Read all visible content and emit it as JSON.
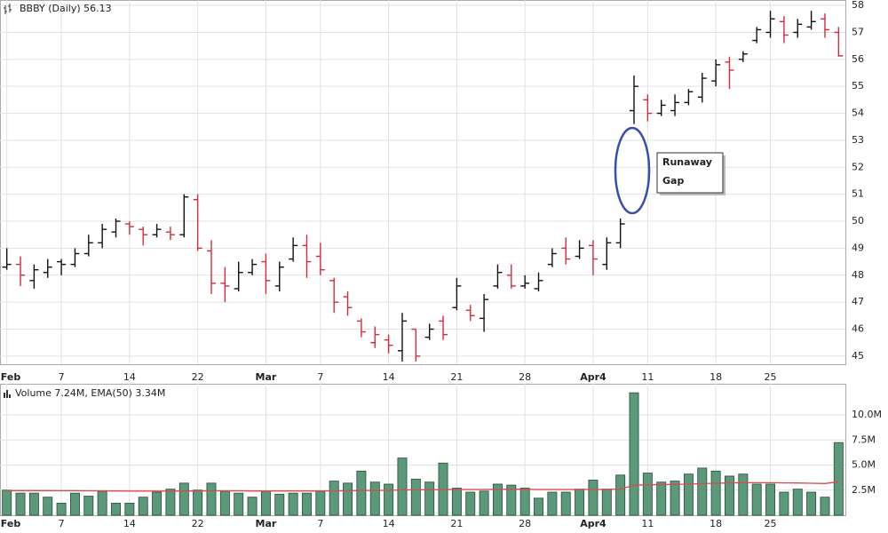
{
  "chart_data": [
    {
      "type": "ohlc",
      "title": "BBBY (Daily) 56.13",
      "categories": [
        "Feb",
        null,
        null,
        null,
        "7",
        null,
        null,
        null,
        null,
        "14",
        null,
        null,
        null,
        null,
        "22",
        null,
        null,
        null,
        null,
        "Mar",
        null,
        null,
        null,
        "7",
        null,
        null,
        null,
        null,
        "14",
        null,
        null,
        null,
        null,
        "21",
        null,
        null,
        null,
        null,
        "28",
        null,
        null,
        null,
        null,
        "Apr4",
        null,
        null,
        null,
        "11",
        null,
        null,
        null,
        null,
        "18",
        null,
        null,
        null,
        "25",
        null,
        null,
        null,
        null,
        null
      ],
      "open": [
        48.3,
        48.4,
        47.8,
        48.1,
        48.5,
        48.4,
        48.8,
        49.2,
        49.6,
        49.9,
        49.7,
        49.5,
        49.6,
        49.5,
        50.8,
        48.9,
        47.7,
        47.5,
        48.1,
        48.5,
        47.6,
        48.6,
        49.1,
        48.7,
        47.8,
        47.2,
        46.3,
        45.5,
        45.6,
        45.2,
        46.0,
        45.7,
        46.3,
        46.8,
        46.7,
        46.4,
        47.6,
        48.0,
        47.6,
        47.5,
        48.4,
        49.0,
        48.7,
        49.1,
        48.4,
        49.2,
        54.1,
        54.5,
        54.0,
        54.1,
        54.4,
        54.6,
        55.2,
        55.9,
        56.0,
        56.7,
        57.0,
        57.4,
        57.0,
        57.2,
        57.5,
        57.0
      ],
      "high": [
        49.0,
        48.7,
        48.4,
        48.6,
        48.6,
        49.0,
        49.5,
        49.9,
        50.1,
        50.0,
        49.8,
        49.9,
        49.8,
        51.0,
        51.0,
        49.3,
        48.3,
        48.5,
        48.6,
        48.8,
        48.5,
        49.4,
        49.5,
        49.2,
        47.9,
        47.4,
        46.4,
        46.1,
        45.8,
        46.6,
        46.0,
        46.2,
        46.5,
        47.9,
        46.9,
        47.3,
        48.4,
        48.4,
        48.0,
        48.1,
        49.0,
        49.4,
        49.3,
        49.3,
        49.4,
        50.1,
        55.4,
        54.7,
        54.5,
        54.7,
        54.9,
        55.5,
        56.0,
        56.1,
        56.3,
        57.2,
        57.8,
        57.6,
        57.5,
        57.8,
        57.7,
        57.2
      ],
      "low": [
        48.2,
        47.6,
        47.5,
        47.9,
        48.0,
        48.3,
        48.7,
        49.0,
        49.4,
        49.5,
        49.1,
        49.4,
        49.3,
        49.4,
        48.9,
        47.3,
        47.0,
        47.4,
        48.0,
        47.3,
        47.4,
        48.5,
        47.9,
        48.0,
        46.6,
        46.5,
        45.7,
        45.3,
        45.1,
        44.8,
        44.8,
        45.6,
        45.6,
        46.7,
        46.3,
        45.9,
        47.5,
        47.5,
        47.5,
        47.4,
        48.3,
        48.4,
        48.6,
        48.0,
        48.2,
        49.0,
        53.6,
        53.7,
        53.9,
        53.9,
        54.3,
        54.4,
        55.0,
        54.9,
        55.9,
        56.6,
        56.8,
        56.6,
        56.8,
        57.1,
        56.8,
        56.1
      ],
      "close": [
        48.4,
        48.0,
        48.2,
        48.3,
        48.4,
        48.8,
        49.2,
        49.7,
        50.0,
        49.8,
        49.5,
        49.7,
        49.5,
        50.9,
        49.0,
        47.7,
        47.6,
        48.1,
        48.4,
        47.8,
        48.3,
        49.1,
        48.5,
        48.2,
        47.0,
        46.8,
        45.9,
        45.8,
        45.4,
        46.3,
        45.0,
        46.0,
        45.8,
        47.6,
        46.5,
        47.1,
        48.1,
        47.6,
        47.7,
        47.8,
        48.8,
        48.6,
        49.0,
        48.6,
        49.2,
        49.9,
        55.0,
        54.0,
        54.3,
        54.4,
        54.8,
        55.3,
        55.8,
        55.6,
        56.2,
        57.1,
        57.5,
        56.9,
        57.3,
        57.4,
        57.1,
        56.13
      ],
      "up_color": "#111111",
      "down_color": "#d42c3c",
      "ylim": [
        44.7,
        58.2
      ],
      "yticks": [
        45,
        46,
        47,
        48,
        49,
        50,
        51,
        52,
        53,
        54,
        55,
        56,
        57,
        58
      ],
      "grid": true,
      "annotation": [
        "Runaway",
        "Gap"
      ]
    },
    {
      "type": "volume",
      "title": "Volume 7.24M, EMA(50) 3.34M",
      "categories": [
        "Feb",
        null,
        null,
        null,
        "7",
        null,
        null,
        null,
        null,
        "14",
        null,
        null,
        null,
        null,
        "22",
        null,
        null,
        null,
        null,
        "Mar",
        null,
        null,
        null,
        "7",
        null,
        null,
        null,
        null,
        "14",
        null,
        null,
        null,
        null,
        "21",
        null,
        null,
        null,
        null,
        "28",
        null,
        null,
        null,
        null,
        "Apr4",
        null,
        null,
        null,
        "11",
        null,
        null,
        null,
        null,
        "18",
        null,
        null,
        null,
        "25",
        null,
        null,
        null,
        null,
        null
      ],
      "values": [
        2.5,
        2.2,
        2.2,
        1.8,
        1.2,
        2.2,
        1.9,
        2.4,
        1.2,
        1.2,
        1.8,
        2.3,
        2.6,
        3.2,
        2.5,
        3.2,
        2.4,
        2.2,
        1.8,
        2.4,
        2.1,
        2.2,
        2.2,
        2.4,
        3.4,
        3.2,
        4.4,
        3.3,
        3.1,
        5.7,
        3.6,
        3.3,
        5.2,
        2.7,
        2.3,
        2.4,
        3.1,
        3.0,
        2.7,
        1.7,
        2.3,
        2.3,
        2.6,
        3.5,
        2.6,
        4.0,
        12.2,
        4.2,
        3.3,
        3.4,
        4.1,
        4.7,
        4.4,
        3.9,
        4.1,
        3.1,
        3.1,
        2.3,
        2.6,
        2.3,
        1.8,
        7.24
      ],
      "color": "#5a9a7a",
      "line_values": [
        2.45,
        2.45,
        2.45,
        2.45,
        2.44,
        2.44,
        2.43,
        2.43,
        2.42,
        2.41,
        2.41,
        2.41,
        2.41,
        2.42,
        2.42,
        2.43,
        2.43,
        2.43,
        2.42,
        2.42,
        2.42,
        2.42,
        2.42,
        2.42,
        2.43,
        2.44,
        2.46,
        2.47,
        2.48,
        2.51,
        2.53,
        2.54,
        2.57,
        2.57,
        2.57,
        2.57,
        2.58,
        2.59,
        2.59,
        2.57,
        2.57,
        2.57,
        2.57,
        2.58,
        2.58,
        2.61,
        2.98,
        3.03,
        3.05,
        3.07,
        3.1,
        3.15,
        3.19,
        3.21,
        3.24,
        3.24,
        3.24,
        3.22,
        3.21,
        3.19,
        3.16,
        3.34
      ],
      "line_color": "#e04848",
      "ylim": [
        0,
        13.1
      ],
      "yticks": [
        {
          "value": 2.5,
          "label": "2.5M"
        },
        {
          "value": 5,
          "label": "5.0M"
        },
        {
          "value": 7.5,
          "label": "7.5M"
        },
        {
          "value": 10,
          "label": "10.0M"
        }
      ],
      "grid": true
    }
  ]
}
